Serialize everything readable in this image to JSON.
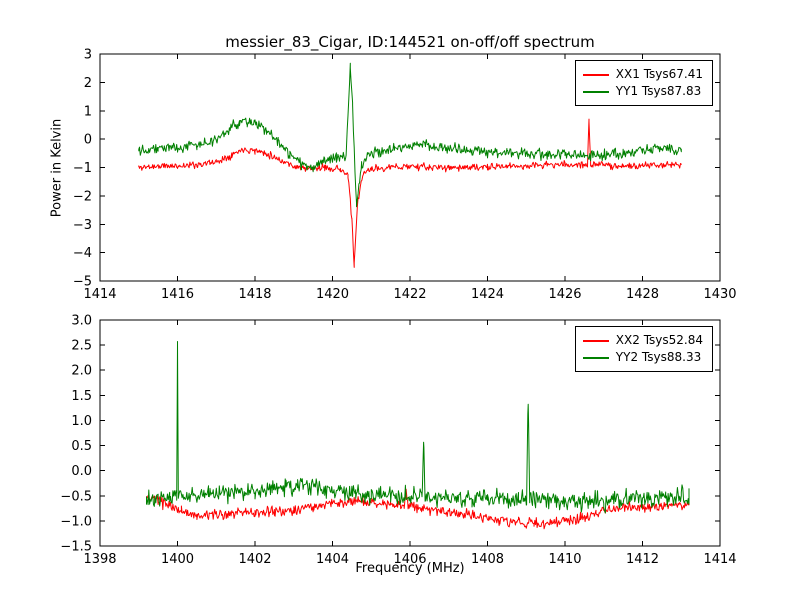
{
  "title": "messier_83_Cigar, ID:144521 on-off/off spectrum",
  "xlabel": "Frequency (MHz)",
  "colors": {
    "xx": "#ff0000",
    "yy": "#008000",
    "axis": "#000000",
    "background": "#ffffff"
  },
  "chart_data": [
    {
      "type": "line",
      "title": "messier_83_Cigar, ID:144521 on-off/off spectrum",
      "ylabel": "Power in Kelvin",
      "xlim": [
        1414,
        1430
      ],
      "ylim": [
        -5,
        3
      ],
      "xticks": [
        1414,
        1416,
        1418,
        1420,
        1422,
        1424,
        1426,
        1428,
        1430
      ],
      "yticks": [
        -5,
        -4,
        -3,
        -2,
        -1,
        0,
        1,
        2,
        3
      ],
      "ytick_format": "int",
      "grid": false,
      "legend_position": "upper right",
      "legend": [
        {
          "label": "XX1 Tsys67.41",
          "color": "#ff0000"
        },
        {
          "label": "YY1 Tsys87.83",
          "color": "#008000"
        }
      ],
      "series": [
        {
          "name": "XX1 Tsys67.41",
          "color": "#ff0000",
          "noise": 0.06,
          "seed": 11,
          "points": [
            [
              1415.0,
              -1.0
            ],
            [
              1415.5,
              -0.95
            ],
            [
              1416.0,
              -0.95
            ],
            [
              1416.5,
              -0.9
            ],
            [
              1417.0,
              -0.8
            ],
            [
              1417.4,
              -0.55
            ],
            [
              1417.7,
              -0.35
            ],
            [
              1418.0,
              -0.4
            ],
            [
              1418.3,
              -0.5
            ],
            [
              1418.6,
              -0.7
            ],
            [
              1419.0,
              -0.95
            ],
            [
              1419.4,
              -1.05
            ],
            [
              1419.8,
              -1.0
            ],
            [
              1420.2,
              -1.05
            ],
            [
              1420.4,
              -1.3
            ],
            [
              1420.5,
              -2.8
            ],
            [
              1420.56,
              -4.5
            ],
            [
              1420.65,
              -2.2
            ],
            [
              1420.8,
              -1.2
            ],
            [
              1421.0,
              -1.05
            ],
            [
              1421.5,
              -1.0
            ],
            [
              1422.0,
              -0.95
            ],
            [
              1422.5,
              -1.0
            ],
            [
              1423.0,
              -1.0
            ],
            [
              1423.5,
              -1.0
            ],
            [
              1424.0,
              -1.0
            ],
            [
              1424.5,
              -0.95
            ],
            [
              1425.0,
              -0.95
            ],
            [
              1425.5,
              -0.9
            ],
            [
              1426.0,
              -0.9
            ],
            [
              1426.5,
              -0.9
            ],
            [
              1426.58,
              -0.9
            ],
            [
              1426.62,
              0.6
            ],
            [
              1426.66,
              -0.9
            ],
            [
              1427.0,
              -0.9
            ],
            [
              1427.5,
              -0.95
            ],
            [
              1428.0,
              -0.95
            ],
            [
              1428.5,
              -0.9
            ],
            [
              1429.0,
              -0.9
            ]
          ]
        },
        {
          "name": "YY1 Tsys87.83",
          "color": "#008000",
          "noise": 0.09,
          "seed": 22,
          "points": [
            [
              1415.0,
              -0.35
            ],
            [
              1415.5,
              -0.3
            ],
            [
              1416.0,
              -0.3
            ],
            [
              1416.5,
              -0.2
            ],
            [
              1417.0,
              -0.05
            ],
            [
              1417.3,
              0.3
            ],
            [
              1417.6,
              0.6
            ],
            [
              1417.8,
              0.65
            ],
            [
              1418.0,
              0.55
            ],
            [
              1418.3,
              0.3
            ],
            [
              1418.6,
              -0.1
            ],
            [
              1418.9,
              -0.55
            ],
            [
              1419.2,
              -0.9
            ],
            [
              1419.5,
              -0.95
            ],
            [
              1419.8,
              -0.8
            ],
            [
              1420.1,
              -0.7
            ],
            [
              1420.35,
              -0.6
            ],
            [
              1420.46,
              2.6
            ],
            [
              1420.52,
              1.2
            ],
            [
              1420.62,
              -2.4
            ],
            [
              1420.75,
              -1.0
            ],
            [
              1420.9,
              -0.6
            ],
            [
              1421.2,
              -0.4
            ],
            [
              1421.6,
              -0.3
            ],
            [
              1422.0,
              -0.25
            ],
            [
              1422.4,
              -0.2
            ],
            [
              1422.8,
              -0.3
            ],
            [
              1423.2,
              -0.35
            ],
            [
              1423.6,
              -0.4
            ],
            [
              1424.0,
              -0.45
            ],
            [
              1424.5,
              -0.5
            ],
            [
              1425.0,
              -0.5
            ],
            [
              1425.5,
              -0.55
            ],
            [
              1426.0,
              -0.55
            ],
            [
              1426.5,
              -0.6
            ],
            [
              1427.0,
              -0.55
            ],
            [
              1427.5,
              -0.5
            ],
            [
              1428.0,
              -0.4
            ],
            [
              1428.4,
              -0.3
            ],
            [
              1428.7,
              -0.35
            ],
            [
              1429.0,
              -0.35
            ]
          ]
        }
      ]
    },
    {
      "type": "line",
      "title": "",
      "ylabel": "",
      "xlim": [
        1398,
        1414
      ],
      "ylim": [
        -1.5,
        3.0
      ],
      "xticks": [
        1398,
        1400,
        1402,
        1404,
        1406,
        1408,
        1410,
        1412,
        1414
      ],
      "yticks": [
        -1.5,
        -1.0,
        -0.5,
        0.0,
        0.5,
        1.0,
        1.5,
        2.0,
        2.5,
        3.0
      ],
      "ytick_format": "one_decimal",
      "grid": false,
      "legend_position": "upper right",
      "legend": [
        {
          "label": "XX2 Tsys52.84",
          "color": "#ff0000"
        },
        {
          "label": "YY2 Tsys88.33",
          "color": "#008000"
        }
      ],
      "series": [
        {
          "name": "XX2 Tsys52.84",
          "color": "#ff0000",
          "noise": 0.05,
          "seed": 33,
          "points": [
            [
              1399.2,
              -0.55
            ],
            [
              1399.5,
              -0.6
            ],
            [
              1399.8,
              -0.7
            ],
            [
              1400.1,
              -0.8
            ],
            [
              1400.5,
              -0.9
            ],
            [
              1401.0,
              -0.88
            ],
            [
              1401.5,
              -0.85
            ],
            [
              1402.0,
              -0.85
            ],
            [
              1402.5,
              -0.82
            ],
            [
              1403.0,
              -0.78
            ],
            [
              1403.5,
              -0.72
            ],
            [
              1404.0,
              -0.66
            ],
            [
              1404.5,
              -0.6
            ],
            [
              1405.0,
              -0.63
            ],
            [
              1405.5,
              -0.68
            ],
            [
              1405.85,
              -0.7
            ],
            [
              1405.9,
              -0.4
            ],
            [
              1405.95,
              -0.7
            ],
            [
              1406.3,
              -0.75
            ],
            [
              1406.8,
              -0.8
            ],
            [
              1407.3,
              -0.85
            ],
            [
              1407.8,
              -0.92
            ],
            [
              1408.3,
              -0.98
            ],
            [
              1408.8,
              -1.02
            ],
            [
              1409.2,
              -1.05
            ],
            [
              1409.6,
              -1.05
            ],
            [
              1410.0,
              -1.0
            ],
            [
              1410.4,
              -0.93
            ],
            [
              1410.8,
              -0.85
            ],
            [
              1411.2,
              -0.78
            ],
            [
              1411.6,
              -0.74
            ],
            [
              1412.0,
              -0.72
            ],
            [
              1412.5,
              -0.7
            ],
            [
              1413.0,
              -0.7
            ],
            [
              1413.2,
              -0.7
            ]
          ]
        },
        {
          "name": "YY2 Tsys88.33",
          "color": "#008000",
          "noise": 0.09,
          "seed": 44,
          "points": [
            [
              1399.2,
              -0.6
            ],
            [
              1399.5,
              -0.55
            ],
            [
              1399.8,
              -0.52
            ],
            [
              1399.98,
              -0.5
            ],
            [
              1400.0,
              2.58
            ],
            [
              1400.02,
              -0.5
            ],
            [
              1400.4,
              -0.5
            ],
            [
              1400.8,
              -0.48
            ],
            [
              1401.2,
              -0.45
            ],
            [
              1401.6,
              -0.42
            ],
            [
              1402.0,
              -0.4
            ],
            [
              1402.4,
              -0.35
            ],
            [
              1402.8,
              -0.3
            ],
            [
              1403.1,
              -0.27
            ],
            [
              1403.4,
              -0.3
            ],
            [
              1403.8,
              -0.35
            ],
            [
              1404.2,
              -0.42
            ],
            [
              1404.6,
              -0.47
            ],
            [
              1405.0,
              -0.5
            ],
            [
              1405.5,
              -0.5
            ],
            [
              1406.0,
              -0.52
            ],
            [
              1406.31,
              -0.52
            ],
            [
              1406.35,
              0.65
            ],
            [
              1406.39,
              -0.52
            ],
            [
              1406.8,
              -0.52
            ],
            [
              1407.2,
              -0.55
            ],
            [
              1407.6,
              -0.55
            ],
            [
              1408.0,
              -0.55
            ],
            [
              1408.4,
              -0.55
            ],
            [
              1408.8,
              -0.55
            ],
            [
              1409.01,
              -0.55
            ],
            [
              1409.05,
              1.45
            ],
            [
              1409.09,
              -0.55
            ],
            [
              1409.4,
              -0.58
            ],
            [
              1409.8,
              -0.6
            ],
            [
              1410.2,
              -0.6
            ],
            [
              1410.6,
              -0.6
            ],
            [
              1411.0,
              -0.6
            ],
            [
              1411.4,
              -0.58
            ],
            [
              1411.8,
              -0.55
            ],
            [
              1412.2,
              -0.55
            ],
            [
              1412.6,
              -0.52
            ],
            [
              1413.0,
              -0.5
            ],
            [
              1413.2,
              -0.5
            ]
          ]
        }
      ]
    }
  ]
}
